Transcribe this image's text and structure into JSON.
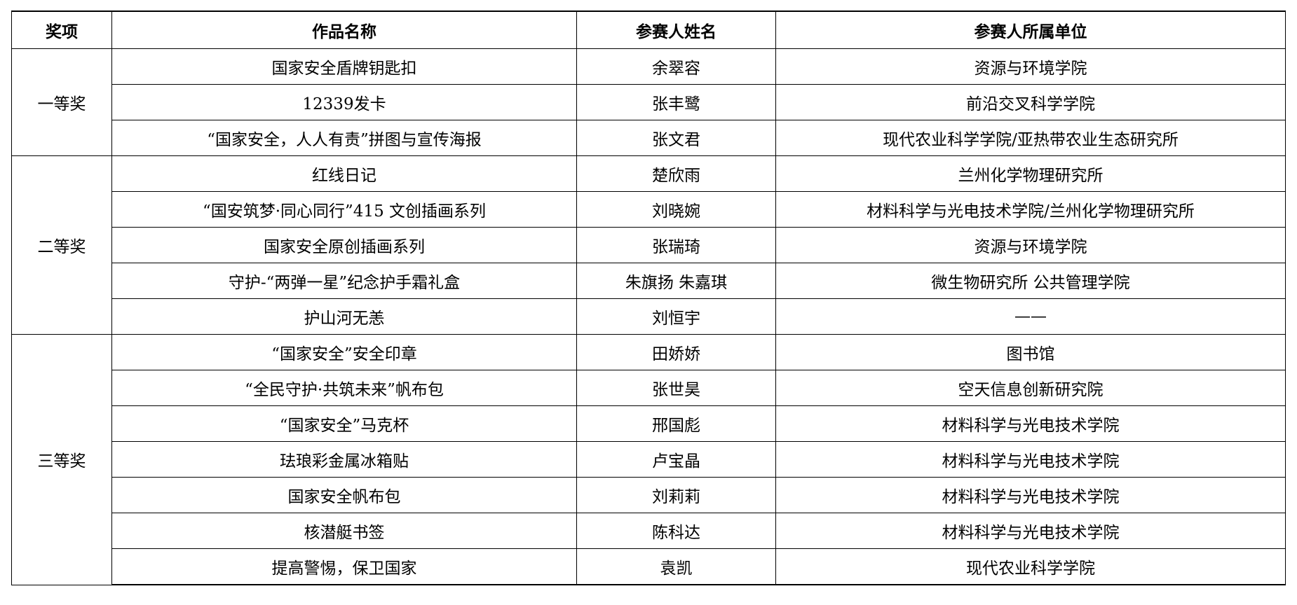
{
  "headers": [
    "奖项",
    "作品名称",
    "参赛人姓名",
    "参赛人所属单位"
  ],
  "groups": [
    {
      "award": "一等奖",
      "rows": [
        {
          "work": "国家安全盾牌钥匙扣",
          "name": "余翠容",
          "unit": "资源与环境学院"
        },
        {
          "work": "12339发卡",
          "name": "张丰鹭",
          "unit": "前沿交叉科学学院"
        },
        {
          "work": "“国家安全，人人有责”拼图与宣传海报",
          "name": "张文君",
          "unit": "现代农业科学学院/亚热带农业生态研究所"
        }
      ]
    },
    {
      "award": "二等奖",
      "rows": [
        {
          "work": "红线日记",
          "name": "楚欣雨",
          "unit": "兰州化学物理研究所"
        },
        {
          "work": "“国安筑梦·同心同行”415 文创插画系列",
          "name": "刘晓婉",
          "unit": "材料科学与光电技术学院/兰州化学物理研究所"
        },
        {
          "work": "国家安全原创插画系列",
          "name": "张瑞琦",
          "unit": "资源与环境学院"
        },
        {
          "work": "守护-“两弹一星”纪念护手霜礼盒",
          "name": "朱旗扬 朱嘉琪",
          "unit": "微生物研究所 公共管理学院"
        },
        {
          "work": "护山河无恙",
          "name": "刘恒宇",
          "unit": "——"
        }
      ]
    },
    {
      "award": "三等奖",
      "rows": [
        {
          "work": "“国家安全”安全印章",
          "name": "田娇娇",
          "unit": "图书馆"
        },
        {
          "work": "“全民守护·共筑未来”帆布包",
          "name": "张世昊",
          "unit": "空天信息创新研究院"
        },
        {
          "work": "“国家安全”马克杯",
          "name": "邢国彪",
          "unit": "材料科学与光电技术学院"
        },
        {
          "work": "珐琅彩金属冰箱贴",
          "name": "卢宝晶",
          "unit": "材料科学与光电技术学院"
        },
        {
          "work": "国家安全帆布包",
          "name": "刘莉莉",
          "unit": "材料科学与光电技术学院"
        },
        {
          "work": "核潜艇书签",
          "name": "陈科达",
          "unit": "材料科学与光电技术学院"
        },
        {
          "work": "提高警惕，保卫国家",
          "name": "袁凯",
          "unit": "现代农业科学学院"
        }
      ]
    }
  ]
}
